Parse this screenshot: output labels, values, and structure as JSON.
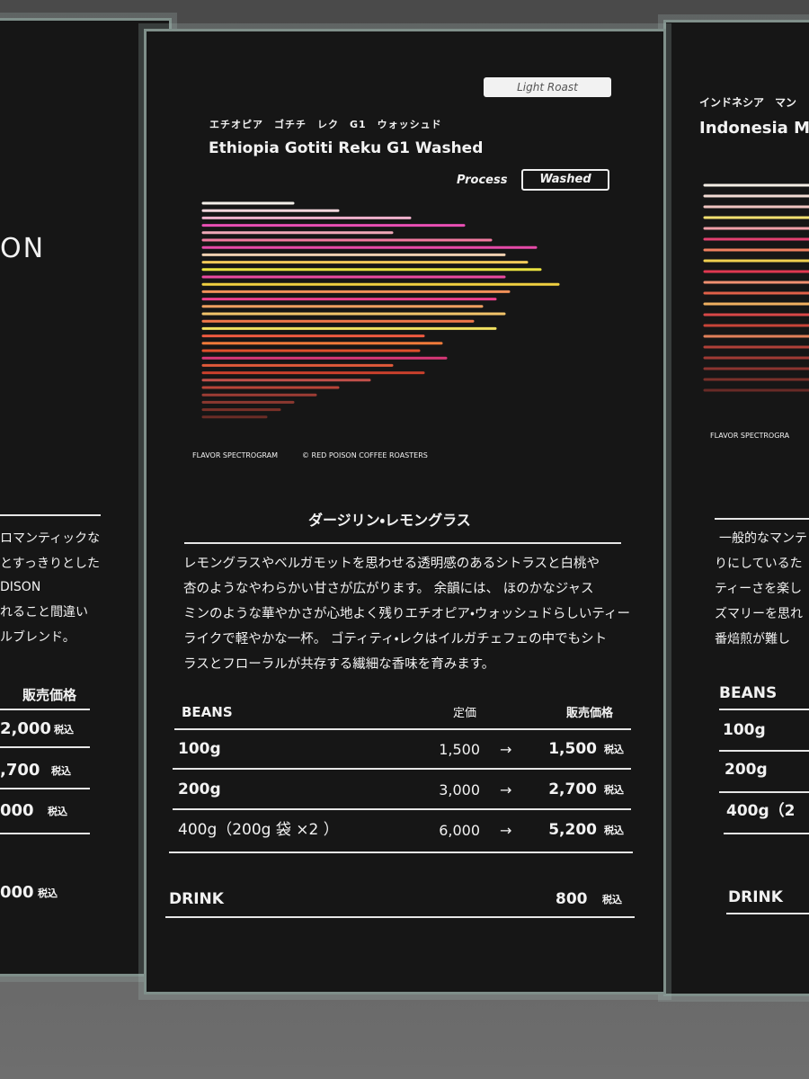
{
  "roast": "Light Roast",
  "name_kana": "エチオピア　ゴチチ　レク　G1　ウォッシュド",
  "name": "Ethiopia Gotiti Reku G1 Washed",
  "process": {
    "label": "Process",
    "value": "Washed"
  },
  "caption": [
    "FLAVOR SPECTROGRAM",
    "© RED POISON COFFEE ROASTERS"
  ],
  "flavor_title": "ダージリン・レモングラス",
  "description": [
    "レモングラスやベルガモットを思わせる透明感のあるシトラスと白桃や",
    "杏のようなやわらかい甘さが広がります。 余韻には、 ほのかなジャス",
    "ミンのような華やかさが心地よく残りエチオピア・ウォッシュドらしいティー",
    "ライクで軽やかな一杯。 ゴティティ・レクはイルガチェフェの中でもシト",
    "ラスとフローラルが共存する繊細な香味を育みます。"
  ],
  "beans": {
    "header": [
      "BEANS",
      "定価",
      "販売価格"
    ],
    "rows": [
      {
        "size": "100g",
        "list_price": "1,500",
        "arrow": "→",
        "price": "1,500",
        "tax": "税込"
      },
      {
        "size": "200g",
        "list_price": "3,000",
        "arrow": "→",
        "price": "2,700",
        "tax": "税込"
      },
      {
        "size": "400g（200g 袋 ×2 ）",
        "list_price": "6,000",
        "arrow": "→",
        "price": "5,200",
        "tax": "税込"
      }
    ]
  },
  "drink": {
    "label": "DRINK",
    "price": "800",
    "tax": "税込"
  },
  "left_panel": {
    "brand": "ON",
    "description": [
      "ロマンティックな",
      "とすっきりとした",
      "DISON",
      "れること間違い",
      "ルブレンド。"
    ],
    "price_header": "販売価格",
    "prices": [
      "2,000",
      ",700",
      "000",
      "000"
    ],
    "tax": "税込"
  },
  "right_panel": {
    "name_kana": "インドネシア　マン",
    "name": "Indonesia M",
    "caption": "FLAVOR SPECTROGRA",
    "description": [
      "一般的なマンテ",
      "りにしているた",
      "ティーさを楽し",
      "ズマリーを思れ",
      "番焙煎が難し"
    ],
    "beans_header": "BEANS",
    "sizes": [
      "100g",
      "200g",
      "400g（2"
    ],
    "drink": "DRINK"
  }
}
